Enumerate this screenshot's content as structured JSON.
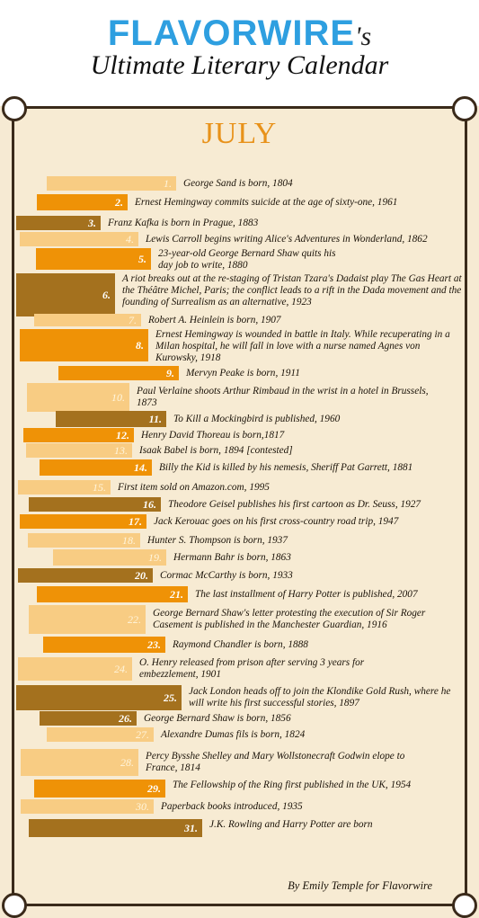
{
  "header": {
    "brand": "FLAVORWIRE",
    "brand_suffix": "'s",
    "subtitle": "Ultimate Literary Calendar"
  },
  "month": "JULY",
  "credit": "By Emily Temple for Flavorwire",
  "entries": [
    {
      "day": "1.",
      "text": "George Sand is born, 1804"
    },
    {
      "day": "2.",
      "text": "Ernest Hemingway commits suicide at the age of sixty-one, 1961"
    },
    {
      "day": "3.",
      "text": "Franz Kafka is born in Prague, 1883"
    },
    {
      "day": "4.",
      "text": "Lewis Carroll begins writing Alice's Adventures in Wonderland, 1862"
    },
    {
      "day": "5.",
      "text": "23-year-old George Bernard Shaw quits his day job to write, 1880"
    },
    {
      "day": "6.",
      "text": "A riot breaks out at the re-staging of Tristan Tzara's Dadaist play The Gas Heart at the Théâtre Michel, Paris; the conflict leads to a rift in the Dada movement and the founding of Surrealism as an alternative, 1923"
    },
    {
      "day": "7.",
      "text": "Robert A. Heinlein is born, 1907"
    },
    {
      "day": "8.",
      "text": "Ernest Hemingway is wounded in battle in Italy. While recuperating in a Milan hospital, he will fall in love with a nurse named Agnes von Kurowsky, 1918"
    },
    {
      "day": "9.",
      "text": "Mervyn Peake is born, 1911"
    },
    {
      "day": "10.",
      "text": "Paul Verlaine shoots Arthur Rimbaud in the wrist in a hotel in Brussels, 1873"
    },
    {
      "day": "11.",
      "text": "To Kill a Mockingbird is published, 1960"
    },
    {
      "day": "12.",
      "text": "Henry David Thoreau is born,1817"
    },
    {
      "day": "13.",
      "text": "Isaak Babel is born, 1894 [contested]"
    },
    {
      "day": "14.",
      "text": "Billy the Kid is killed by his nemesis, Sheriff Pat Garrett, 1881"
    },
    {
      "day": "15.",
      "text": "First item sold on Amazon.com, 1995"
    },
    {
      "day": "16.",
      "text": "Theodore Geisel publishes his first cartoon as Dr. Seuss, 1927"
    },
    {
      "day": "17.",
      "text": "Jack Kerouac goes on his first cross-country road trip, 1947"
    },
    {
      "day": "18.",
      "text": "Hunter S. Thompson is born, 1937"
    },
    {
      "day": "19.",
      "text": "Hermann Bahr is born, 1863"
    },
    {
      "day": "20.",
      "text": "Cormac McCarthy is born, 1933"
    },
    {
      "day": "21.",
      "text": "The last installment of Harry Potter is published, 2007"
    },
    {
      "day": "22.",
      "text": "George Bernard Shaw's letter protesting the execution of Sir Roger Casement is published in the Manchester Guardian, 1916"
    },
    {
      "day": "23.",
      "text": "Raymond Chandler is born, 1888"
    },
    {
      "day": "24.",
      "text": "O. Henry released from prison after serving 3 years for embezzlement, 1901"
    },
    {
      "day": "25.",
      "text": "Jack London heads off to join the Klondike Gold Rush, where he will write his first successful stories, 1897"
    },
    {
      "day": "26.",
      "text": "George Bernard Shaw is born, 1856"
    },
    {
      "day": "27.",
      "text": "Alexandre Dumas fils is born, 1824"
    },
    {
      "day": "28.",
      "text": "Percy Bysshe Shelley and Mary Wollstonecraft Godwin elope to France, 1814"
    },
    {
      "day": "29.",
      "text": "The Fellowship of the Ring first published in the UK, 1954"
    },
    {
      "day": "30.",
      "text": "Paperback books introduced, 1935"
    },
    {
      "day": "31.",
      "text": "J.K. Rowling and Harry Potter are born"
    }
  ]
}
